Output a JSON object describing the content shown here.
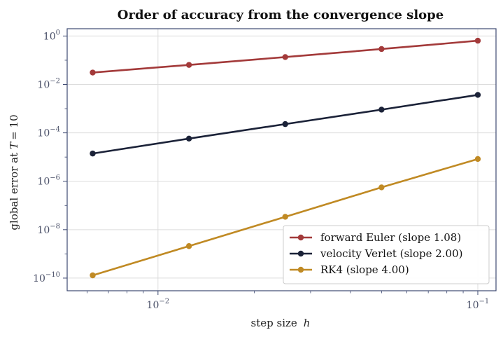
{
  "chart_data": {
    "type": "line",
    "title": "Order of accuracy from the convergence slope",
    "xlabel": "step size",
    "xlabel_var": "h",
    "ylabel_prefix": "global error at",
    "ylabel_var": "T",
    "ylabel_suffix": "= 10",
    "xscale": "log",
    "yscale": "log",
    "xlim": [
      0.0052,
      0.114
    ],
    "ylim": [
      3e-11,
      2
    ],
    "grid": true,
    "legend_position": "lower-right",
    "x": [
      0.00625,
      0.0125,
      0.025,
      0.05,
      0.1
    ],
    "series": [
      {
        "name": "forward Euler  (slope 1.08)",
        "color": "#a33a3a",
        "values": [
          0.031,
          0.064,
          0.135,
          0.29,
          0.64
        ]
      },
      {
        "name": "velocity Verlet  (slope 2.00)",
        "color": "#1b2238",
        "values": [
          1.4e-05,
          5.8e-05,
          0.00023,
          0.00091,
          0.0037
        ]
      },
      {
        "name": "RK4  (slope 4.00)",
        "color": "#c08a24",
        "values": [
          1.3e-10,
          2.1e-09,
          3.4e-08,
          5.6e-07,
          8.3e-06
        ]
      }
    ],
    "x_ticks": [
      {
        "value": 0.01,
        "base": "10",
        "exp": "−2"
      },
      {
        "value": 0.1,
        "base": "10",
        "exp": "−1"
      }
    ],
    "y_ticks": [
      {
        "value": 1,
        "base": "10",
        "exp": "0"
      },
      {
        "value": 0.01,
        "base": "10",
        "exp": "−2"
      },
      {
        "value": 0.0001,
        "base": "10",
        "exp": "−4"
      },
      {
        "value": 1e-06,
        "base": "10",
        "exp": "−6"
      },
      {
        "value": 1e-08,
        "base": "10",
        "exp": "−8"
      },
      {
        "value": 1e-10,
        "base": "10",
        "exp": "−10"
      }
    ],
    "colors": {
      "frame": "#3e4a72",
      "grid": "#dcdcdc",
      "tick_text": "#4a5068"
    }
  }
}
